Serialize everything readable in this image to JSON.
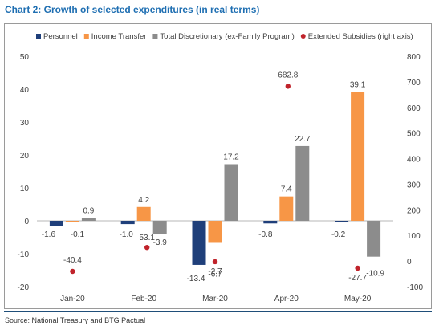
{
  "title": "Chart 2: Growth of selected expenditures (in real terms)",
  "source": "Source: National Treasury and BTG Pactual",
  "chart_data": {
    "type": "bar",
    "categories": [
      "Jan-20",
      "Feb-20",
      "Mar-20",
      "Apr-20",
      "May-20"
    ],
    "series": [
      {
        "name": "Personnel",
        "axis": "left",
        "color": "#1f3f7a",
        "values": [
          -1.6,
          -1.0,
          -13.4,
          -0.8,
          -0.2
        ],
        "labels": [
          "-1.6",
          "-1.0",
          "-13.4",
          "-0.8",
          "-0.2"
        ]
      },
      {
        "name": "Income Transfer",
        "axis": "left",
        "color": "#f79646",
        "values": [
          -0.1,
          4.2,
          -6.7,
          7.4,
          39.1
        ],
        "labels": [
          "-0.1",
          "4.2",
          "-6.7",
          "7.4",
          "39.1"
        ]
      },
      {
        "name": "Total Discretionary (ex-Family Program)",
        "axis": "left",
        "color": "#8c8c8c",
        "values": [
          0.9,
          -3.9,
          17.2,
          22.7,
          -10.9
        ],
        "labels": [
          "0.9",
          "-3.9",
          "17.2",
          "22.7",
          "-10.9"
        ]
      },
      {
        "name": "Extended Subsidies (right axis)",
        "axis": "right",
        "type": "scatter",
        "color": "#c0232b",
        "values": [
          -40.4,
          53.1,
          -2.7,
          682.8,
          -27.7
        ],
        "labels": [
          "-40.4",
          "53.1",
          "-2.7",
          "682.8",
          "-27.7"
        ]
      }
    ],
    "ylim_left": [
      -20,
      50
    ],
    "yticks_left": [
      -20,
      -10,
      0,
      10,
      20,
      30,
      40,
      50
    ],
    "ylim_right": [
      -100,
      800
    ],
    "yticks_right": [
      -100,
      0,
      100,
      200,
      300,
      400,
      500,
      600,
      700,
      800
    ],
    "grid": false,
    "legend": "top"
  }
}
